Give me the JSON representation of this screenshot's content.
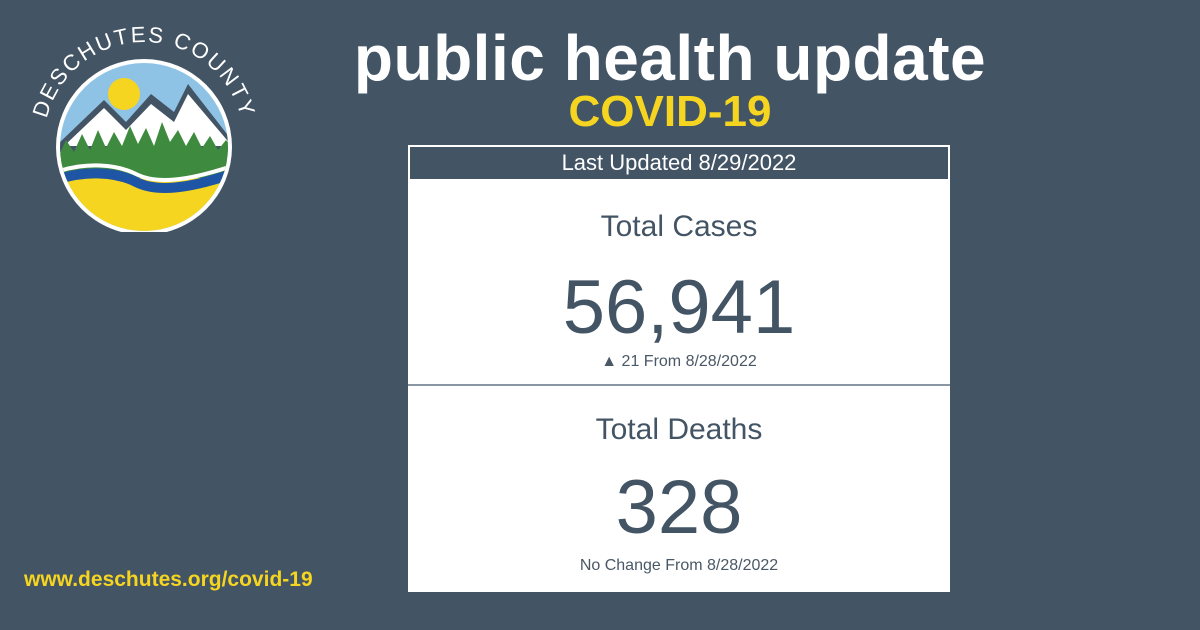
{
  "logo": {
    "text": "DESCHUTES COUNTY",
    "colors": {
      "sky": "#8fc3e6",
      "sun": "#f6d520",
      "mountain": "#ffffff",
      "mountain_shadow": "#435465",
      "trees": "#3e8a3e",
      "river": "#1f55a5",
      "land": "#f6d520"
    }
  },
  "header": {
    "title": "public health update",
    "subtitle": "COVID-19"
  },
  "updated": {
    "text": "Last Updated 8/29/2022"
  },
  "cases": {
    "label": "Total Cases",
    "value": "56,941",
    "change_arrow": "▲",
    "change_text": "21 From 8/28/2022"
  },
  "deaths": {
    "label": "Total Deaths",
    "value": "328",
    "change_text": "No Change From 8/28/2022"
  },
  "footer": {
    "website": "www.deschutes.org/covid-19"
  },
  "colors": {
    "background": "#435465",
    "accent": "#f6d520",
    "panel": "#ffffff"
  }
}
